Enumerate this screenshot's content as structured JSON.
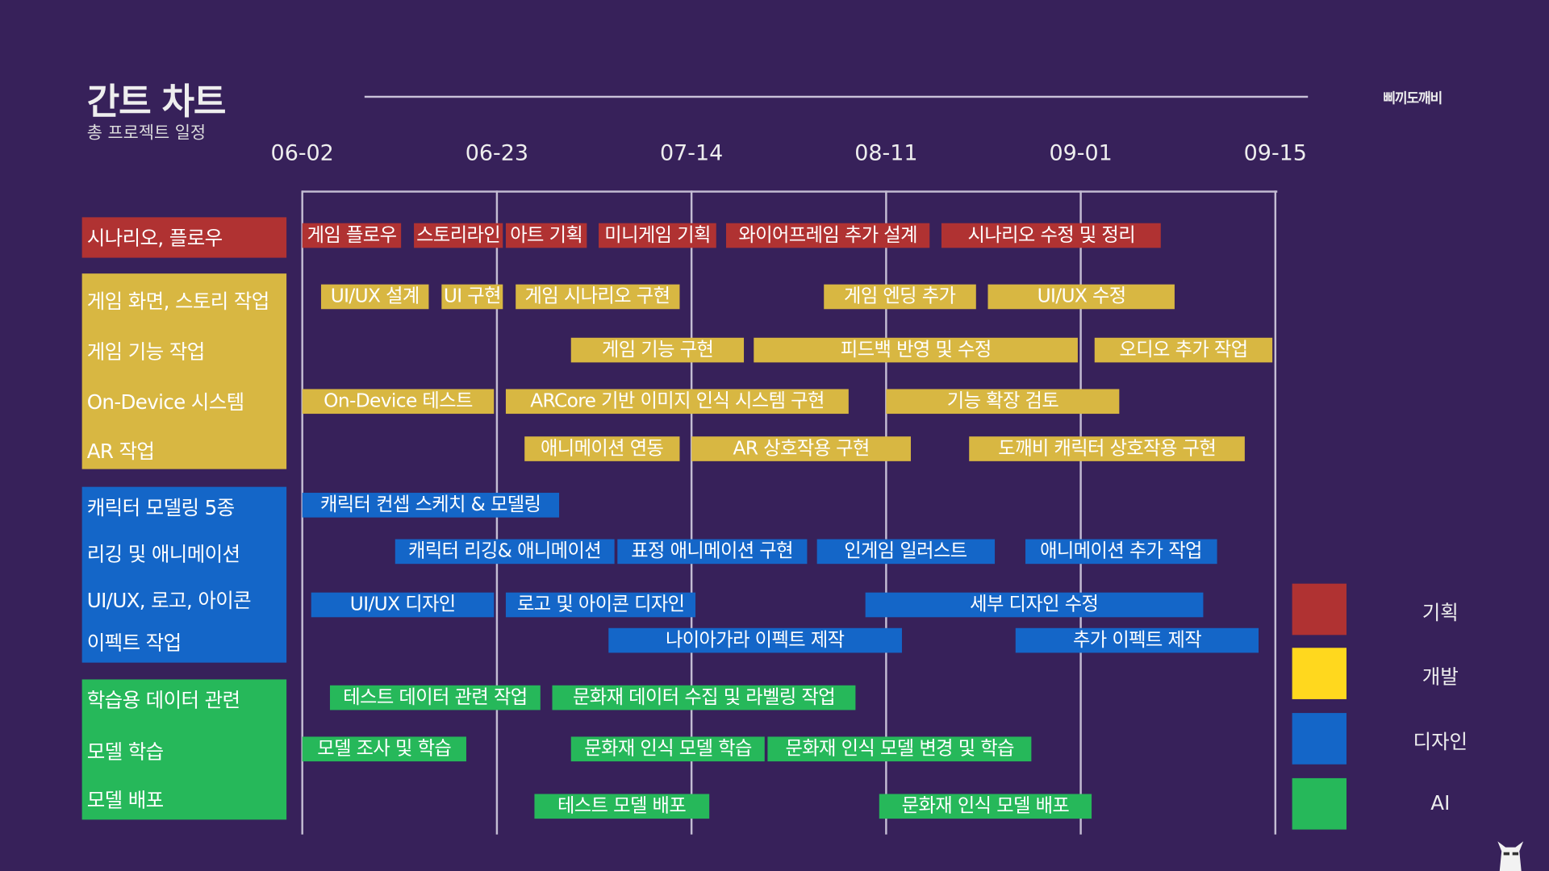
{
  "header": {
    "title": "간트 차트",
    "subtitle": "총 프로젝트 일정",
    "brand": "삐끼도깨비"
  },
  "colors": {
    "background": "#37215a",
    "planning": "#b03232",
    "development": "#d8b742",
    "design": "#1466c8",
    "ai": "#26b85a",
    "legend_development": "#ffd81e"
  },
  "chart_data": {
    "type": "gantt",
    "x_ticks": [
      "06-02",
      "06-23",
      "07-14",
      "08-11",
      "09-01",
      "09-15"
    ],
    "grid": true,
    "legend_position": "right",
    "legend": [
      {
        "label": "기획",
        "color": "#b03232"
      },
      {
        "label": "개발",
        "color": "#ffd81e"
      },
      {
        "label": "디자인",
        "color": "#1466c8"
      },
      {
        "label": "AI",
        "color": "#26b85a"
      }
    ],
    "groups": [
      {
        "name": "기획",
        "color": "#b03232",
        "labels": [
          "시나리오, 플로우"
        ],
        "rows": [
          [
            [
              "게임 플로우",
              "06-02",
              "06-13"
            ],
            [
              "스토리라인",
              "06-14",
              "06-24"
            ],
            [
              "아트 기획",
              "06-24",
              "07-03"
            ],
            [
              "미니게임 기획",
              "07-04",
              "07-18"
            ],
            [
              "와이어프레임 추가 설계",
              "07-19",
              "08-16"
            ],
            [
              "시나리오 수정 및 정리",
              "08-17",
              "09-07"
            ]
          ]
        ]
      },
      {
        "name": "개발",
        "color": "#d8b742",
        "labels": [
          "게임 화면, 스토리 작업",
          "게임 기능 작업",
          "On-Device 시스템",
          "AR 작업"
        ],
        "rows": [
          [
            [
              "UI/UX 설계",
              "06-04",
              "06-16"
            ],
            [
              "UI 구현",
              "06-17",
              "06-24"
            ],
            [
              "게임 시나리오 구현",
              "06-25",
              "07-13"
            ],
            [
              "게임 엔딩 추가",
              "08-02",
              "08-21"
            ],
            [
              "UI/UX 수정",
              "08-22",
              "09-08"
            ]
          ],
          [
            [
              "게임 기능 구현",
              "07-01",
              "07-22"
            ],
            [
              "피드백 반영 및 수정",
              "07-23",
              "09-01"
            ],
            [
              "오디오 추가 작업",
              "09-02",
              "09-15"
            ]
          ],
          [
            [
              "On-Device 테스트",
              "06-02",
              "06-23"
            ],
            [
              "ARCore 기반 이미지  인식 시스템 구현",
              "06-24",
              "08-06"
            ],
            [
              "기능 확장 검토",
              "08-11",
              "09-04"
            ]
          ],
          [
            [
              "애니메이션 연동",
              "06-26",
              "07-13"
            ],
            [
              "AR 상호작용 구현",
              "07-14",
              "08-14"
            ],
            [
              "도깨비 캐릭터 상호작용 구현",
              "08-20",
              "09-13"
            ]
          ]
        ]
      },
      {
        "name": "디자인",
        "color": "#1466c8",
        "labels": [
          "캐릭터 모델링 5종",
          "리깅 및 애니메이션",
          "UI/UX, 로고, 아이콘",
          "이펙트 작업"
        ],
        "rows": [
          [
            [
              "캐릭터 컨셉 스케치 & 모델링",
              "06-02",
              "06-30"
            ]
          ],
          [
            [
              "캐릭터 리깅& 애니메이션",
              "06-12",
              "07-06"
            ],
            [
              "표정 애니메이션 구현",
              "07-06",
              "07-31"
            ],
            [
              "인게임 일러스트",
              "08-01",
              "08-23"
            ],
            [
              "애니메이션 추가 작업",
              "08-26",
              "09-11"
            ]
          ],
          [
            [
              "UI/UX 디자인",
              "06-03",
              "06-23"
            ],
            [
              "로고 및 아이콘 디자인",
              "06-24",
              "07-15"
            ],
            [
              "세부 디자인 수정",
              "08-08",
              "09-10"
            ]
          ],
          [
            [
              "나이아가라 이펙트 제작",
              "07-05",
              "08-13"
            ],
            [
              "추가 이펙트 제작",
              "08-25",
              "09-14"
            ]
          ]
        ]
      },
      {
        "name": "AI",
        "color": "#26b85a",
        "labels": [
          "학습용 데이터 관련",
          "모델 학습",
          "모델 배포"
        ],
        "rows": [
          [
            [
              "테스트 데이터 관련 작업",
              "06-05",
              "06-28"
            ],
            [
              "문화재 데이터 수집 및 라벨링 작업",
              "06-29",
              "08-07"
            ]
          ],
          [
            [
              "모델 조사 및 학습",
              "06-02",
              "06-20"
            ],
            [
              "문화재 인식 모델 학습",
              "07-01",
              "07-25"
            ],
            [
              "문화재 인식 모델 변경 및 학습",
              "07-25",
              "08-27"
            ]
          ],
          [
            [
              "테스트 모델 배포",
              "06-27",
              "07-17"
            ],
            [
              "문화재 인식 모델 배포",
              "08-10",
              "09-02"
            ]
          ]
        ]
      }
    ]
  }
}
